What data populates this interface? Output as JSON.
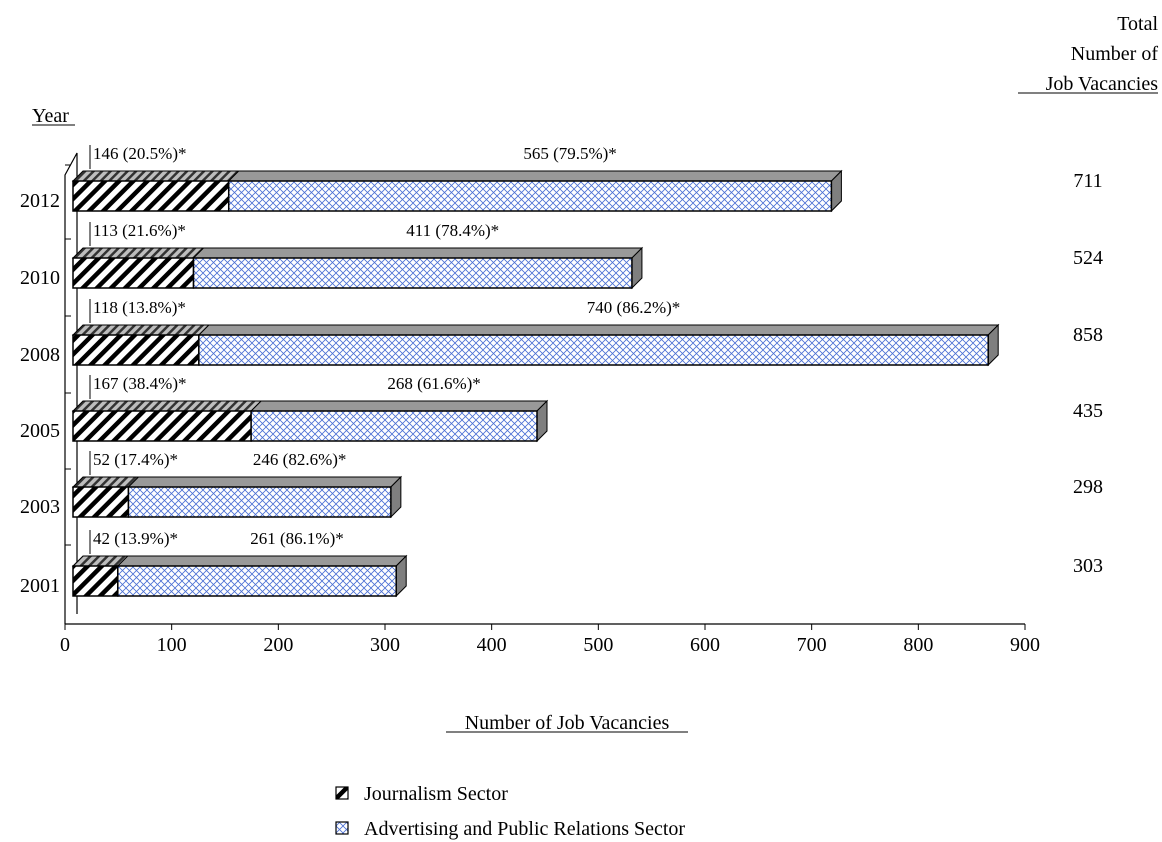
{
  "chart_data": {
    "type": "bar",
    "stacked": true,
    "orientation": "horizontal",
    "ylabel": "Year",
    "xlabel": "Number of Job Vacancies",
    "totals_heading": [
      "Total",
      "Number of",
      "Job Vacancies"
    ],
    "categories": [
      "2012",
      "2010",
      "2008",
      "2005",
      "2003",
      "2001"
    ],
    "series": [
      {
        "name": "Journalism Sector",
        "values": [
          146,
          113,
          118,
          167,
          52,
          42
        ],
        "labels": [
          "146 (20.5%)*",
          "113 (21.6%)*",
          "118 (13.8%)*",
          "167 (38.4%)*",
          "52 (17.4%)*",
          "42 (13.9%)*"
        ]
      },
      {
        "name": "Advertising and Public Relations Sector",
        "values": [
          565,
          411,
          740,
          268,
          246,
          261
        ],
        "labels": [
          "565 (79.5%)*",
          "411 (78.4%)*",
          "740 (86.2%)*",
          "268 (61.6%)*",
          "246 (82.6%)*",
          "261 (86.1%)*"
        ]
      }
    ],
    "totals": [
      "711",
      "524",
      "858",
      "435",
      "298",
      "303"
    ],
    "xlim": [
      0,
      900
    ],
    "xticks": [
      "0",
      "100",
      "200",
      "300",
      "400",
      "500",
      "600",
      "700",
      "800",
      "900"
    ],
    "legend_position": "bottom",
    "colors": {
      "journalism": "#000000",
      "advertising": "#4a6fd4",
      "top_face": "#999999",
      "side_face": "#7f7f7f"
    }
  }
}
